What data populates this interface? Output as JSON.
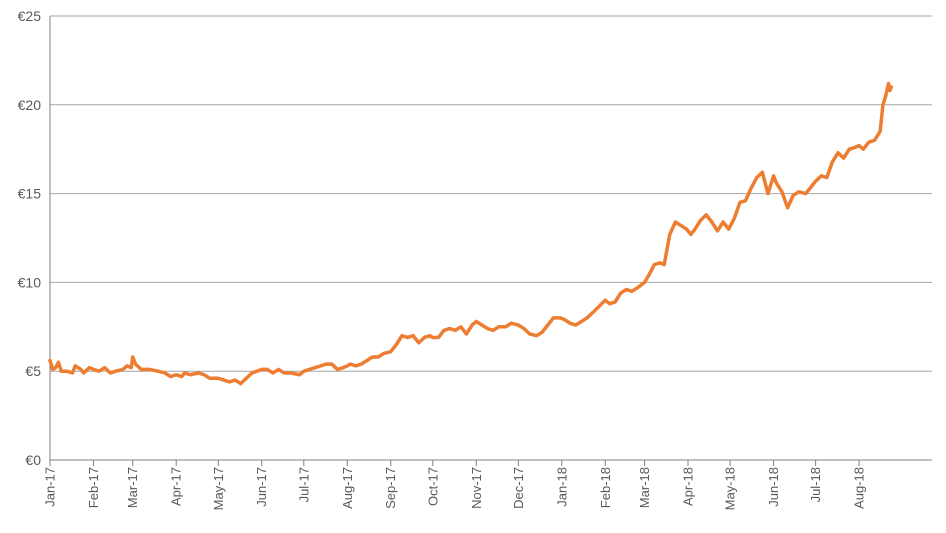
{
  "chart_data": {
    "type": "line",
    "title": "",
    "xlabel": "",
    "ylabel": "",
    "ylim": [
      0,
      25
    ],
    "y_ticks": [
      0,
      5,
      10,
      15,
      20,
      25
    ],
    "y_tick_labels": [
      "€0",
      "€5",
      "€10",
      "€15",
      "€20",
      "€25"
    ],
    "x_range": [
      "2017-01-01",
      "2018-09-22"
    ],
    "x_ticks": [
      "2017-01-01",
      "2017-02-01",
      "2017-03-01",
      "2017-04-01",
      "2017-05-01",
      "2017-06-01",
      "2017-07-01",
      "2017-08-01",
      "2017-09-01",
      "2017-10-01",
      "2017-11-01",
      "2017-12-01",
      "2018-01-01",
      "2018-02-01",
      "2018-03-01",
      "2018-04-01",
      "2018-05-01",
      "2018-06-01",
      "2018-07-01",
      "2018-08-01"
    ],
    "x_tick_labels": [
      "Jan-17",
      "Feb-17",
      "Mar-17",
      "Apr-17",
      "May-17",
      "Jun-17",
      "Jul-17",
      "Aug-17",
      "Sep-17",
      "Oct-17",
      "Nov-17",
      "Dec-17",
      "Jan-18",
      "Feb-18",
      "Mar-18",
      "Apr-18",
      "May-18",
      "Jun-18",
      "Jul-18",
      "Aug-18"
    ],
    "grid": true,
    "legend": "none",
    "series": [
      {
        "color": "#ed7d31",
        "points": [
          [
            "2017-01-01",
            5.6
          ],
          [
            "2017-01-03",
            5.1
          ],
          [
            "2017-01-05",
            5.2
          ],
          [
            "2017-01-07",
            5.5
          ],
          [
            "2017-01-09",
            5.0
          ],
          [
            "2017-01-13",
            5.0
          ],
          [
            "2017-01-17",
            4.9
          ],
          [
            "2017-01-19",
            5.3
          ],
          [
            "2017-01-23",
            5.1
          ],
          [
            "2017-01-25",
            4.9
          ],
          [
            "2017-01-29",
            5.2
          ],
          [
            "2017-02-01",
            5.1
          ],
          [
            "2017-02-05",
            5.0
          ],
          [
            "2017-02-09",
            5.2
          ],
          [
            "2017-02-13",
            4.9
          ],
          [
            "2017-02-17",
            5.0
          ],
          [
            "2017-02-22",
            5.1
          ],
          [
            "2017-02-25",
            5.3
          ],
          [
            "2017-02-28",
            5.2
          ],
          [
            "2017-03-01",
            5.8
          ],
          [
            "2017-03-03",
            5.4
          ],
          [
            "2017-03-07",
            5.1
          ],
          [
            "2017-03-13",
            5.1
          ],
          [
            "2017-03-19",
            5.0
          ],
          [
            "2017-03-24",
            4.9
          ],
          [
            "2017-03-28",
            4.7
          ],
          [
            "2017-04-01",
            4.8
          ],
          [
            "2017-04-05",
            4.7
          ],
          [
            "2017-04-07",
            4.9
          ],
          [
            "2017-04-11",
            4.8
          ],
          [
            "2017-04-17",
            4.9
          ],
          [
            "2017-04-21",
            4.8
          ],
          [
            "2017-04-25",
            4.6
          ],
          [
            "2017-05-01",
            4.6
          ],
          [
            "2017-05-05",
            4.5
          ],
          [
            "2017-05-09",
            4.4
          ],
          [
            "2017-05-13",
            4.5
          ],
          [
            "2017-05-17",
            4.3
          ],
          [
            "2017-05-21",
            4.6
          ],
          [
            "2017-05-25",
            4.9
          ],
          [
            "2017-06-01",
            5.1
          ],
          [
            "2017-06-05",
            5.1
          ],
          [
            "2017-06-09",
            4.9
          ],
          [
            "2017-06-13",
            5.1
          ],
          [
            "2017-06-17",
            4.9
          ],
          [
            "2017-06-22",
            4.9
          ],
          [
            "2017-06-28",
            4.8
          ],
          [
            "2017-07-01",
            5.0
          ],
          [
            "2017-07-05",
            5.1
          ],
          [
            "2017-07-09",
            5.2
          ],
          [
            "2017-07-13",
            5.3
          ],
          [
            "2017-07-17",
            5.4
          ],
          [
            "2017-07-21",
            5.4
          ],
          [
            "2017-07-25",
            5.1
          ],
          [
            "2017-07-29",
            5.2
          ],
          [
            "2017-08-01",
            5.3
          ],
          [
            "2017-08-03",
            5.4
          ],
          [
            "2017-08-07",
            5.3
          ],
          [
            "2017-08-11",
            5.4
          ],
          [
            "2017-08-15",
            5.6
          ],
          [
            "2017-08-19",
            5.8
          ],
          [
            "2017-08-23",
            5.8
          ],
          [
            "2017-08-27",
            6.0
          ],
          [
            "2017-09-01",
            6.1
          ],
          [
            "2017-09-05",
            6.5
          ],
          [
            "2017-09-09",
            7.0
          ],
          [
            "2017-09-13",
            6.9
          ],
          [
            "2017-09-17",
            7.0
          ],
          [
            "2017-09-21",
            6.6
          ],
          [
            "2017-09-25",
            6.9
          ],
          [
            "2017-09-29",
            7.0
          ],
          [
            "2017-10-01",
            6.9
          ],
          [
            "2017-10-05",
            6.9
          ],
          [
            "2017-10-09",
            7.3
          ],
          [
            "2017-10-13",
            7.4
          ],
          [
            "2017-10-17",
            7.3
          ],
          [
            "2017-10-21",
            7.5
          ],
          [
            "2017-10-25",
            7.1
          ],
          [
            "2017-10-29",
            7.6
          ],
          [
            "2017-11-01",
            7.8
          ],
          [
            "2017-11-05",
            7.6
          ],
          [
            "2017-11-09",
            7.4
          ],
          [
            "2017-11-13",
            7.3
          ],
          [
            "2017-11-17",
            7.5
          ],
          [
            "2017-11-22",
            7.5
          ],
          [
            "2017-11-26",
            7.7
          ],
          [
            "2017-12-01",
            7.6
          ],
          [
            "2017-12-05",
            7.4
          ],
          [
            "2017-12-09",
            7.1
          ],
          [
            "2017-12-14",
            7.0
          ],
          [
            "2017-12-18",
            7.2
          ],
          [
            "2017-12-22",
            7.6
          ],
          [
            "2017-12-26",
            8.0
          ],
          [
            "2017-12-31",
            8.0
          ],
          [
            "2018-01-03",
            7.9
          ],
          [
            "2018-01-07",
            7.7
          ],
          [
            "2018-01-11",
            7.6
          ],
          [
            "2018-01-15",
            7.8
          ],
          [
            "2018-01-19",
            8.0
          ],
          [
            "2018-01-23",
            8.3
          ],
          [
            "2018-01-27",
            8.6
          ],
          [
            "2018-02-01",
            9.0
          ],
          [
            "2018-02-04",
            8.8
          ],
          [
            "2018-02-08",
            8.9
          ],
          [
            "2018-02-12",
            9.4
          ],
          [
            "2018-02-16",
            9.6
          ],
          [
            "2018-02-20",
            9.5
          ],
          [
            "2018-02-24",
            9.7
          ],
          [
            "2018-03-01",
            10.0
          ],
          [
            "2018-03-04",
            10.4
          ],
          [
            "2018-03-08",
            11.0
          ],
          [
            "2018-03-12",
            11.1
          ],
          [
            "2018-03-15",
            11.0
          ],
          [
            "2018-03-19",
            12.7
          ],
          [
            "2018-03-23",
            13.4
          ],
          [
            "2018-03-27",
            13.2
          ],
          [
            "2018-03-31",
            13.0
          ],
          [
            "2018-04-03",
            12.7
          ],
          [
            "2018-04-06",
            13.0
          ],
          [
            "2018-04-10",
            13.5
          ],
          [
            "2018-04-14",
            13.8
          ],
          [
            "2018-04-18",
            13.4
          ],
          [
            "2018-04-22",
            12.9
          ],
          [
            "2018-04-26",
            13.4
          ],
          [
            "2018-04-30",
            13.0
          ],
          [
            "2018-05-04",
            13.6
          ],
          [
            "2018-05-08",
            14.5
          ],
          [
            "2018-05-12",
            14.6
          ],
          [
            "2018-05-16",
            15.3
          ],
          [
            "2018-05-20",
            15.9
          ],
          [
            "2018-05-24",
            16.2
          ],
          [
            "2018-05-28",
            15.0
          ],
          [
            "2018-06-01",
            16.0
          ],
          [
            "2018-06-03",
            15.6
          ],
          [
            "2018-06-07",
            15.1
          ],
          [
            "2018-06-11",
            14.2
          ],
          [
            "2018-06-15",
            14.9
          ],
          [
            "2018-06-19",
            15.1
          ],
          [
            "2018-06-24",
            15.0
          ],
          [
            "2018-06-28",
            15.4
          ],
          [
            "2018-07-01",
            15.7
          ],
          [
            "2018-07-05",
            16.0
          ],
          [
            "2018-07-09",
            15.9
          ],
          [
            "2018-07-13",
            16.8
          ],
          [
            "2018-07-17",
            17.3
          ],
          [
            "2018-07-21",
            17.0
          ],
          [
            "2018-07-25",
            17.5
          ],
          [
            "2018-07-29",
            17.6
          ],
          [
            "2018-08-01",
            17.7
          ],
          [
            "2018-08-04",
            17.5
          ],
          [
            "2018-08-08",
            17.9
          ],
          [
            "2018-08-12",
            18.0
          ],
          [
            "2018-08-16",
            18.5
          ],
          [
            "2018-08-18",
            20.0
          ],
          [
            "2018-08-20",
            20.5
          ],
          [
            "2018-08-22",
            21.2
          ],
          [
            "2018-08-23",
            20.8
          ],
          [
            "2018-08-24",
            21.0
          ]
        ]
      }
    ]
  }
}
